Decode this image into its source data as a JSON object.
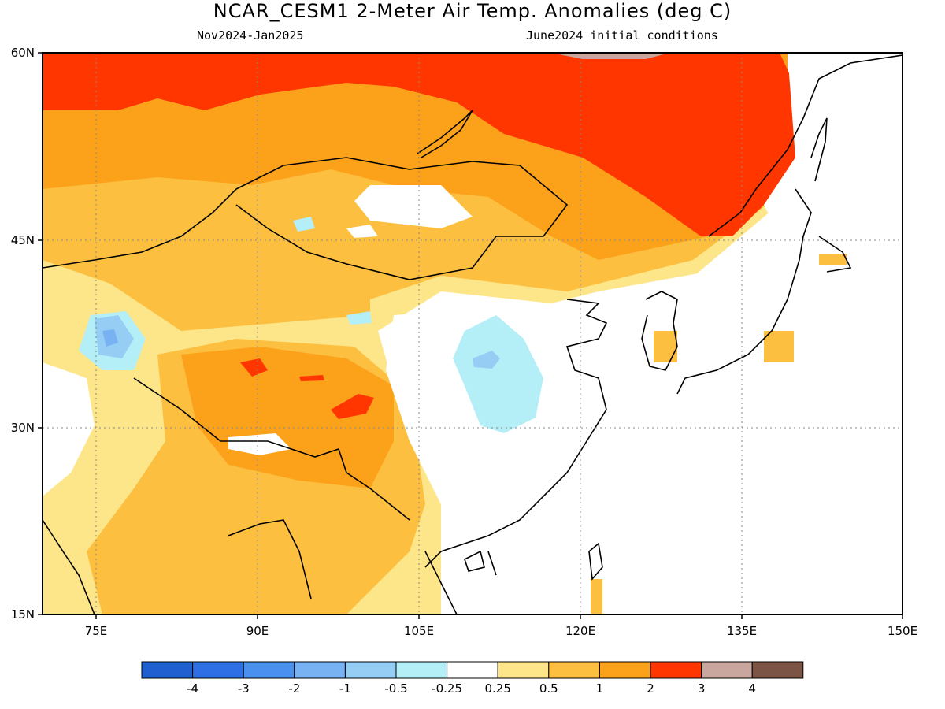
{
  "title": "NCAR_CESM1 2-Meter Air Temp. Anomalies (deg C)",
  "period": "Nov2024-Jan2025",
  "initial_conditions": "June2024 initial conditions",
  "map": {
    "lon_labels": [
      "75E",
      "90E",
      "105E",
      "120E",
      "135E",
      "150E"
    ],
    "lat_labels": [
      "60N",
      "45N",
      "30N",
      "15N"
    ],
    "lon_range": [
      70,
      150
    ],
    "lat_range": [
      15,
      60
    ],
    "variable": "2-Meter Air Temp. Anomalies",
    "units": "deg C"
  },
  "legend": {
    "colors": [
      "#1f5fd0",
      "#2f6fe6",
      "#4a90ee",
      "#78b2f2",
      "#96cdf5",
      "#b4eef7",
      "#ffffff",
      "#fde68a",
      "#fcbf3f",
      "#fba11a",
      "#ff3600",
      "#c9a79e",
      "#7b5446"
    ],
    "labels": [
      "-4",
      "-3",
      "-2",
      "-1",
      "-0.5",
      "-0.25",
      "0.25",
      "0.5",
      "1",
      "2",
      "3",
      "4"
    ]
  }
}
